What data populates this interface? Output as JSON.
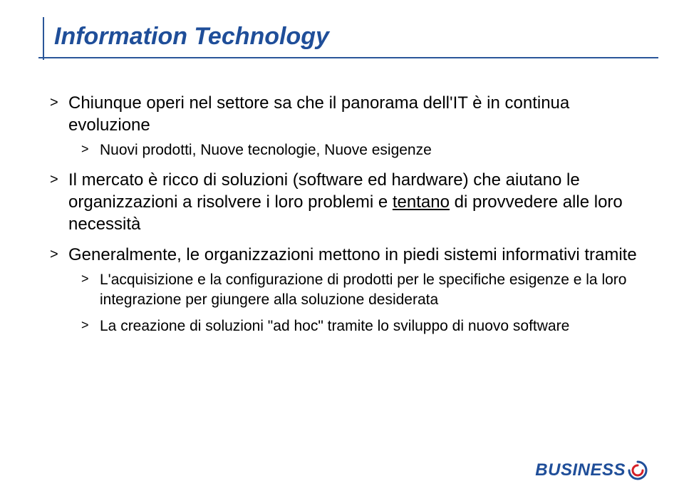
{
  "title": "Information Technology",
  "colors": {
    "title": "#1f4e99",
    "rule": "#2a5699",
    "text": "#000000",
    "background": "#ffffff",
    "logo_primary": "#1f4e99",
    "logo_accent": "#d61f26"
  },
  "bullets": [
    {
      "parts": [
        {
          "text": "Chiunque operi nel settore sa che il panorama dell'IT è in continua evoluzione"
        }
      ],
      "children": [
        {
          "parts": [
            {
              "text": "Nuovi prodotti, Nuove tecnologie, Nuove esigenze"
            }
          ]
        }
      ]
    },
    {
      "parts": [
        {
          "text": "Il mercato è ricco di soluzioni (software ed hardware) che aiutano le organizzazioni a risolvere i loro problemi e "
        },
        {
          "text": "tentano",
          "underline": true
        },
        {
          "text": " di provvedere alle loro necessità"
        }
      ]
    },
    {
      "parts": [
        {
          "text": "Generalmente, le organizzazioni mettono in piedi sistemi informativi tramite"
        }
      ],
      "children": [
        {
          "parts": [
            {
              "text": "L'acquisizione e la configurazione di prodotti per le specifiche esigenze e la loro integrazione per giungere alla soluzione desiderata"
            }
          ]
        },
        {
          "parts": [
            {
              "text": "La creazione di soluzioni \"ad hoc\" tramite lo sviluppo di nuovo software"
            }
          ]
        }
      ]
    }
  ],
  "logo": {
    "text": "BUSINESS"
  }
}
